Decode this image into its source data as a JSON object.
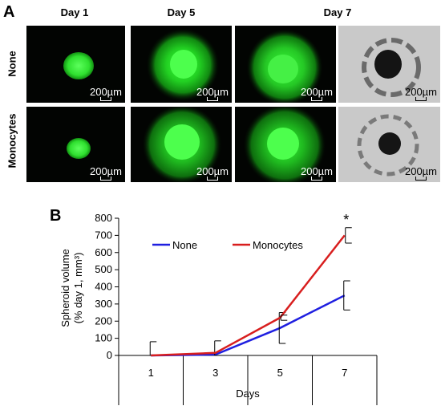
{
  "panel_a": {
    "letter": "A",
    "columns": [
      "Day 1",
      "Day 5",
      "Day 7"
    ],
    "rows": [
      "None",
      "Monocytes"
    ],
    "scale_label": "200µm"
  },
  "panel_b": {
    "letter": "B"
  },
  "chart_data": {
    "type": "line",
    "x": [
      1,
      3,
      5,
      7
    ],
    "categories": [
      "1",
      "3",
      "5",
      "7"
    ],
    "series": [
      {
        "name": "None",
        "color": "#1f1fe0",
        "values": [
          0,
          5,
          160,
          350
        ],
        "errors": [
          80,
          80,
          90,
          85
        ]
      },
      {
        "name": "Monocytes",
        "color": "#d81e1e",
        "values": [
          0,
          15,
          220,
          700
        ],
        "errors": [
          0,
          0,
          15,
          45
        ]
      }
    ],
    "xlabel": "Days",
    "ylabel_line1": "Spheroid volume",
    "ylabel_line2": "(% day 1, mm³)",
    "ylim": [
      0,
      800
    ],
    "yticks": [
      0,
      100,
      200,
      300,
      400,
      500,
      600,
      700,
      800
    ],
    "annotation": "*",
    "legend_position": "top-left",
    "grid": false
  }
}
